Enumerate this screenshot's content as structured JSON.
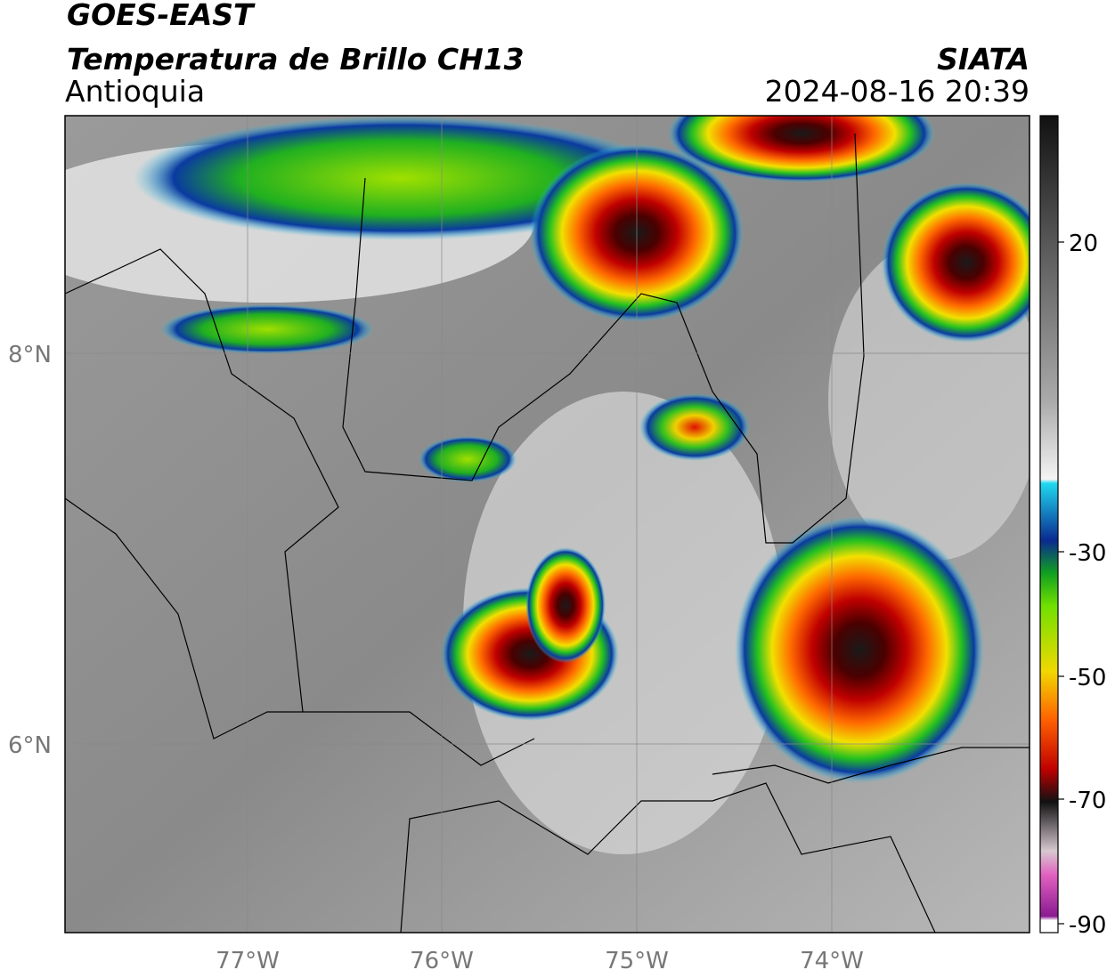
{
  "header": {
    "satellite": "GOES-EAST",
    "product": "Temperatura de Brillo CH13",
    "region": "Antioquia",
    "agency": "SIATA",
    "timestamp": "2024-08-16 20:39"
  },
  "map": {
    "lat_labels": [
      "8°N",
      "6°N"
    ],
    "lon_labels": [
      "77°W",
      "76°W",
      "75°W",
      "74°W"
    ]
  },
  "colorbar": {
    "ticks": [
      "20",
      "-30",
      "-50",
      "-70",
      "-90"
    ]
  }
}
